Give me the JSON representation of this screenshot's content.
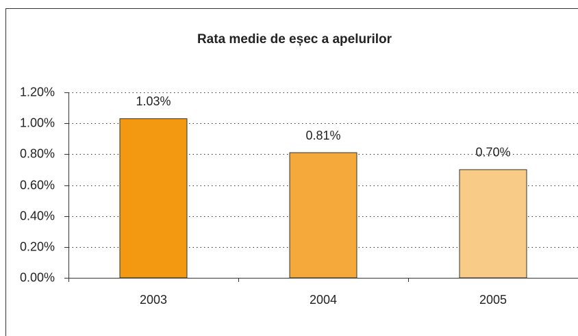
{
  "chart_data": {
    "type": "bar",
    "title": "Rata medie de eșec a apelurilor",
    "categories": [
      "2003",
      "2004",
      "2005"
    ],
    "values": [
      1.03,
      0.81,
      0.7
    ],
    "value_labels": [
      "1.03%",
      "0.81%",
      "0.70%"
    ],
    "colors": [
      "#f39811",
      "#f5a93a",
      "#f8cb87"
    ],
    "ylim": [
      0,
      1.2
    ],
    "yticks": [
      {
        "value": 0,
        "label": "0.00%"
      },
      {
        "value": 0.2,
        "label": "0.20%"
      },
      {
        "value": 0.4,
        "label": "0.40%"
      },
      {
        "value": 0.6,
        "label": "0.60%"
      },
      {
        "value": 0.8,
        "label": "0.80%"
      },
      {
        "value": 1.0,
        "label": "1.00%"
      },
      {
        "value": 1.2,
        "label": "1.20%"
      }
    ],
    "grid": true
  }
}
